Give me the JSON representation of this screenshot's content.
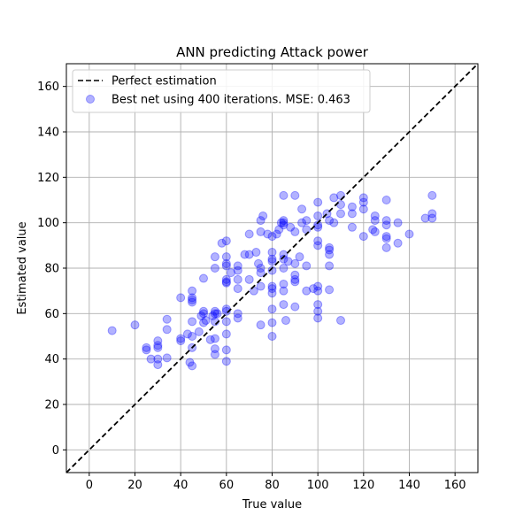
{
  "chart_data": {
    "type": "scatter",
    "title": "ANN predicting Attack power",
    "xlabel": "True value",
    "ylabel": "Estimated value",
    "xlim": [
      -10,
      170
    ],
    "ylim": [
      -10,
      170
    ],
    "xticks": [
      0,
      20,
      40,
      60,
      80,
      100,
      120,
      140,
      160
    ],
    "yticks": [
      0,
      20,
      40,
      60,
      80,
      100,
      120,
      140,
      160
    ],
    "grid": true,
    "legend_position": "upper-left",
    "reference_line": {
      "name": "Perfect estimation",
      "style": "dashed",
      "color": "#000000",
      "x": [
        -10,
        170
      ],
      "y": [
        -10,
        170
      ]
    },
    "series": [
      {
        "name": "Best net using 400 iterations. MSE: 0.463",
        "color": "#0000ff",
        "opacity": 0.3,
        "points": [
          [
            10,
            52.5
          ],
          [
            20,
            55
          ],
          [
            25,
            45
          ],
          [
            25,
            44
          ],
          [
            27,
            40
          ],
          [
            30,
            48
          ],
          [
            30,
            46
          ],
          [
            30,
            45
          ],
          [
            30,
            40
          ],
          [
            30,
            37.5
          ],
          [
            34,
            57.5
          ],
          [
            34,
            53
          ],
          [
            34,
            40.5
          ],
          [
            40,
            67
          ],
          [
            40,
            49
          ],
          [
            40,
            48
          ],
          [
            43,
            51
          ],
          [
            44,
            38.5
          ],
          [
            45,
            70
          ],
          [
            45,
            67
          ],
          [
            45,
            66
          ],
          [
            45,
            65
          ],
          [
            45,
            56.5
          ],
          [
            45,
            50
          ],
          [
            45,
            45
          ],
          [
            45,
            37
          ],
          [
            48,
            52
          ],
          [
            49,
            59
          ],
          [
            50,
            75.5
          ],
          [
            50,
            61
          ],
          [
            50,
            60
          ],
          [
            50,
            56
          ],
          [
            51,
            57
          ],
          [
            53,
            48.5
          ],
          [
            54,
            59
          ],
          [
            55,
            85
          ],
          [
            55,
            80
          ],
          [
            55,
            61
          ],
          [
            55,
            60
          ],
          [
            55,
            56.5
          ],
          [
            55,
            49
          ],
          [
            55,
            44.5
          ],
          [
            55,
            42
          ],
          [
            56,
            60
          ],
          [
            58,
            91
          ],
          [
            60,
            92
          ],
          [
            60,
            85
          ],
          [
            60,
            82
          ],
          [
            60,
            81
          ],
          [
            60,
            75
          ],
          [
            60,
            74
          ],
          [
            60,
            73.5
          ],
          [
            60,
            62
          ],
          [
            60,
            61
          ],
          [
            60,
            56.5
          ],
          [
            60,
            51
          ],
          [
            60,
            44
          ],
          [
            60,
            39
          ],
          [
            62,
            78
          ],
          [
            65,
            81
          ],
          [
            65,
            79
          ],
          [
            65,
            75
          ],
          [
            65,
            71
          ],
          [
            65,
            60
          ],
          [
            65,
            58
          ],
          [
            68,
            86
          ],
          [
            70,
            95
          ],
          [
            70,
            86
          ],
          [
            70,
            75
          ],
          [
            72,
            70
          ],
          [
            73,
            87
          ],
          [
            74,
            82
          ],
          [
            75,
            101
          ],
          [
            75,
            96
          ],
          [
            75,
            80
          ],
          [
            75,
            78
          ],
          [
            75,
            72
          ],
          [
            75,
            55
          ],
          [
            76,
            103
          ],
          [
            78,
            95
          ],
          [
            80,
            94
          ],
          [
            80,
            87
          ],
          [
            80,
            84
          ],
          [
            80,
            83
          ],
          [
            80,
            79
          ],
          [
            80,
            72
          ],
          [
            80,
            71
          ],
          [
            80,
            69
          ],
          [
            80,
            62
          ],
          [
            80,
            56
          ],
          [
            80,
            50
          ],
          [
            82,
            95
          ],
          [
            83,
            97
          ],
          [
            84,
            100
          ],
          [
            85,
            112
          ],
          [
            85,
            101
          ],
          [
            85,
            100
          ],
          [
            85,
            99
          ],
          [
            85,
            86
          ],
          [
            85,
            84
          ],
          [
            85,
            80
          ],
          [
            85,
            73
          ],
          [
            85,
            70
          ],
          [
            85,
            64
          ],
          [
            86,
            57
          ],
          [
            87,
            83
          ],
          [
            88,
            98
          ],
          [
            90,
            112
          ],
          [
            90,
            96
          ],
          [
            90,
            82
          ],
          [
            90,
            77
          ],
          [
            90,
            75
          ],
          [
            90,
            74
          ],
          [
            90,
            63
          ],
          [
            92,
            85
          ],
          [
            93,
            106
          ],
          [
            93,
            100
          ],
          [
            95,
            101
          ],
          [
            95,
            97
          ],
          [
            95,
            81
          ],
          [
            95,
            70
          ],
          [
            98,
            71
          ],
          [
            100,
            109
          ],
          [
            100,
            103
          ],
          [
            100,
            99
          ],
          [
            100,
            98
          ],
          [
            100,
            92
          ],
          [
            100,
            90
          ],
          [
            100,
            72
          ],
          [
            100,
            70
          ],
          [
            100,
            64
          ],
          [
            100,
            61
          ],
          [
            100,
            58
          ],
          [
            104,
            104
          ],
          [
            105,
            101
          ],
          [
            105,
            89
          ],
          [
            105,
            88
          ],
          [
            105,
            86
          ],
          [
            105,
            81
          ],
          [
            105,
            70.5
          ],
          [
            107,
            111
          ],
          [
            107,
            100
          ],
          [
            110,
            112
          ],
          [
            110,
            108
          ],
          [
            110,
            104
          ],
          [
            110,
            57
          ],
          [
            115,
            107
          ],
          [
            115,
            104
          ],
          [
            115,
            98
          ],
          [
            120,
            111
          ],
          [
            120,
            109
          ],
          [
            120,
            106
          ],
          [
            120,
            94
          ],
          [
            124,
            97
          ],
          [
            125,
            103
          ],
          [
            125,
            101
          ],
          [
            125,
            96
          ],
          [
            130,
            110
          ],
          [
            130,
            101
          ],
          [
            130,
            99
          ],
          [
            130,
            94
          ],
          [
            130,
            93
          ],
          [
            130,
            89
          ],
          [
            135,
            100
          ],
          [
            135,
            91
          ],
          [
            140,
            95
          ],
          [
            147,
            102
          ],
          [
            150,
            112
          ],
          [
            150,
            104
          ],
          [
            150,
            102
          ]
        ]
      }
    ]
  }
}
